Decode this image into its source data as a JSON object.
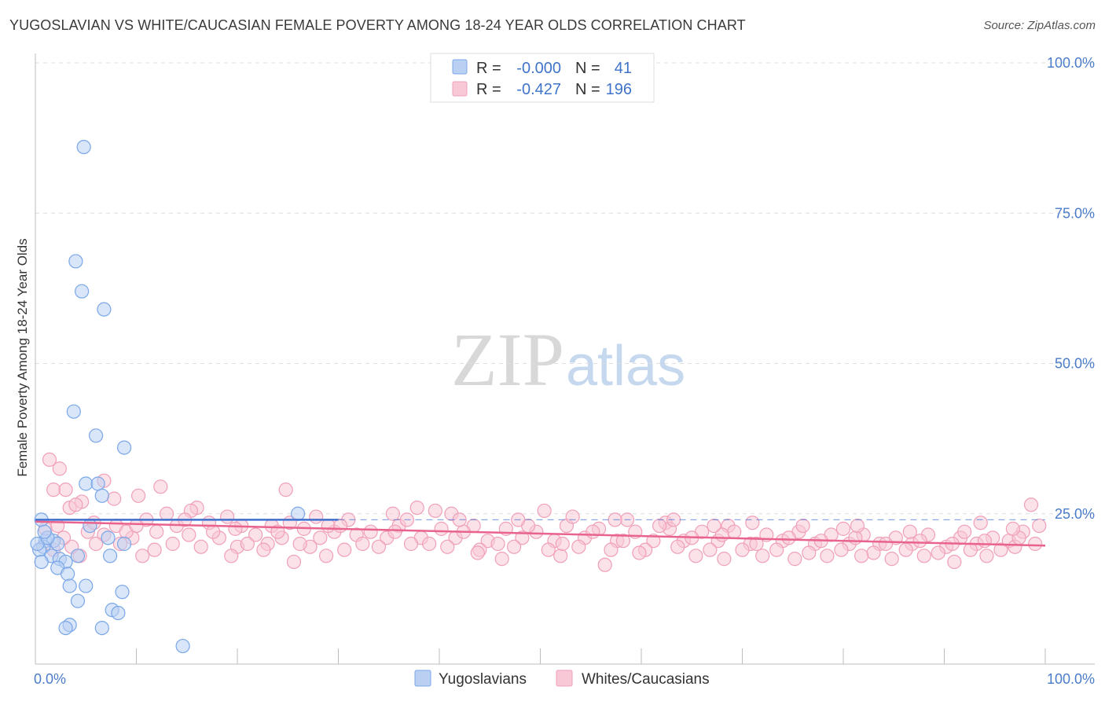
{
  "title": "YUGOSLAVIAN VS WHITE/CAUCASIAN FEMALE POVERTY AMONG 18-24 YEAR OLDS CORRELATION CHART",
  "source": "Source: ZipAtlas.com",
  "watermark": {
    "zip": "ZIP",
    "atlas": "atlas"
  },
  "chart_data": {
    "type": "scatter",
    "title": "YUGOSLAVIAN VS WHITE/CAUCASIAN FEMALE POVERTY AMONG 18-24 YEAR OLDS CORRELATION CHART",
    "xlabel": "",
    "ylabel": "Female Poverty Among 18-24 Year Olds",
    "xlim": [
      0,
      100
    ],
    "ylim": [
      0,
      100
    ],
    "x_tick_labels": [
      "0.0%",
      "100.0%"
    ],
    "y_ticks": [
      25,
      50,
      75,
      100
    ],
    "y_tick_labels": [
      "25.0%",
      "50.0%",
      "75.0%",
      "100.0%"
    ],
    "grid": true,
    "legend": {
      "placement": "top-center",
      "rows": [
        {
          "r_label": "R =",
          "r_value": "-0.000",
          "n_label": "N =",
          "n_value": "41"
        },
        {
          "r_label": "R =",
          "r_value": "-0.427",
          "n_label": "N =",
          "n_value": "196"
        }
      ]
    },
    "series": [
      {
        "name": "Yugoslavians",
        "color": "#7aa7e8",
        "fill": "#b9d0f3",
        "trend": {
          "x": [
            0,
            30
          ],
          "y": [
            24.0,
            24.0
          ],
          "color": "#3f6fcf"
        },
        "points": [
          [
            4.8,
            86
          ],
          [
            4.0,
            67
          ],
          [
            4.6,
            62
          ],
          [
            6.8,
            59
          ],
          [
            3.8,
            42
          ],
          [
            6.0,
            38
          ],
          [
            8.8,
            36
          ],
          [
            5.0,
            30
          ],
          [
            6.2,
            30
          ],
          [
            6.6,
            28
          ],
          [
            0.6,
            24
          ],
          [
            5.4,
            23
          ],
          [
            7.2,
            21
          ],
          [
            1.0,
            20.5
          ],
          [
            1.8,
            20.5
          ],
          [
            2.2,
            20
          ],
          [
            8.8,
            20
          ],
          [
            0.8,
            19.5
          ],
          [
            0.4,
            19
          ],
          [
            1.6,
            18
          ],
          [
            2.4,
            17.5
          ],
          [
            4.2,
            18
          ],
          [
            7.4,
            18
          ],
          [
            0.6,
            17
          ],
          [
            3.0,
            17
          ],
          [
            2.2,
            16
          ],
          [
            3.2,
            15
          ],
          [
            3.4,
            13
          ],
          [
            5.0,
            13
          ],
          [
            8.6,
            12
          ],
          [
            4.2,
            10.5
          ],
          [
            7.6,
            9
          ],
          [
            8.2,
            8.5
          ],
          [
            3.4,
            6.5
          ],
          [
            3.0,
            6
          ],
          [
            6.6,
            6
          ],
          [
            14.6,
            3
          ],
          [
            26.0,
            25
          ],
          [
            0.2,
            20
          ],
          [
            1.2,
            21
          ],
          [
            0.9,
            22
          ]
        ]
      },
      {
        "name": "Whites/Caucasians",
        "color": "#f0a0b8",
        "fill": "#f8c8d6",
        "trend": {
          "x": [
            0,
            100
          ],
          "y": [
            23.7,
            19.7
          ],
          "color": "#e8648e"
        },
        "points": [
          [
            1.4,
            34
          ],
          [
            2.4,
            32.5
          ],
          [
            6.8,
            30.5
          ],
          [
            12.4,
            29.5
          ],
          [
            1.8,
            29
          ],
          [
            24.8,
            29
          ],
          [
            3.0,
            29
          ],
          [
            10.2,
            28
          ],
          [
            7.8,
            27.5
          ],
          [
            3.4,
            26
          ],
          [
            4.6,
            27
          ],
          [
            4.0,
            26.5
          ],
          [
            16.0,
            26
          ],
          [
            13.0,
            25
          ],
          [
            15.4,
            25.5
          ],
          [
            19.0,
            24.5
          ],
          [
            27.8,
            24.5
          ],
          [
            31.0,
            24
          ],
          [
            35.4,
            25
          ],
          [
            37.8,
            26
          ],
          [
            39.6,
            25.5
          ],
          [
            41.2,
            25
          ],
          [
            50.4,
            25.5
          ],
          [
            58.6,
            24
          ],
          [
            62.4,
            23.5
          ],
          [
            68.6,
            23
          ],
          [
            80.0,
            22.5
          ],
          [
            93.6,
            23.5
          ],
          [
            98.6,
            26.5
          ],
          [
            8.0,
            23
          ],
          [
            11.0,
            24
          ],
          [
            14.0,
            23
          ],
          [
            17.2,
            23.5
          ],
          [
            20.4,
            23
          ],
          [
            23.4,
            23
          ],
          [
            26.6,
            22.5
          ],
          [
            29.6,
            22
          ],
          [
            33.2,
            22
          ],
          [
            36.0,
            23
          ],
          [
            40.2,
            22.5
          ],
          [
            43.4,
            23
          ],
          [
            46.6,
            22.5
          ],
          [
            49.6,
            22
          ],
          [
            52.6,
            23
          ],
          [
            55.8,
            22.5
          ],
          [
            59.4,
            22
          ],
          [
            62.8,
            22.5
          ],
          [
            66.0,
            22
          ],
          [
            69.2,
            22
          ],
          [
            72.4,
            21.5
          ],
          [
            75.6,
            22
          ],
          [
            78.8,
            21.5
          ],
          [
            82.0,
            21.5
          ],
          [
            85.2,
            21
          ],
          [
            88.4,
            21.5
          ],
          [
            91.6,
            21
          ],
          [
            94.8,
            21
          ],
          [
            97.8,
            22
          ],
          [
            1.0,
            22.5
          ],
          [
            2.2,
            23
          ],
          [
            5.2,
            22
          ],
          [
            6.8,
            21.5
          ],
          [
            9.6,
            21
          ],
          [
            12.0,
            22
          ],
          [
            15.2,
            21.5
          ],
          [
            18.2,
            21
          ],
          [
            21.8,
            21.5
          ],
          [
            24.4,
            21
          ],
          [
            28.2,
            21
          ],
          [
            31.8,
            21.5
          ],
          [
            34.8,
            21
          ],
          [
            38.2,
            21
          ],
          [
            41.6,
            21
          ],
          [
            44.8,
            20.5
          ],
          [
            48.2,
            21
          ],
          [
            51.4,
            20.5
          ],
          [
            54.4,
            21
          ],
          [
            57.6,
            20.5
          ],
          [
            61.2,
            20.5
          ],
          [
            64.2,
            20.5
          ],
          [
            67.6,
            20.5
          ],
          [
            70.8,
            20
          ],
          [
            74.0,
            20.5
          ],
          [
            77.2,
            20
          ],
          [
            80.6,
            20
          ],
          [
            83.6,
            20
          ],
          [
            86.8,
            20
          ],
          [
            90.2,
            19.5
          ],
          [
            93.2,
            20
          ],
          [
            96.4,
            20.5
          ],
          [
            3.6,
            19.5
          ],
          [
            8.4,
            20
          ],
          [
            11.8,
            19
          ],
          [
            16.4,
            19.5
          ],
          [
            20.0,
            19.5
          ],
          [
            23.0,
            20
          ],
          [
            27.2,
            19.5
          ],
          [
            30.6,
            19
          ],
          [
            34.0,
            19.5
          ],
          [
            37.2,
            20
          ],
          [
            40.8,
            19.5
          ],
          [
            44.0,
            19
          ],
          [
            47.4,
            19.5
          ],
          [
            50.8,
            19
          ],
          [
            53.8,
            19.5
          ],
          [
            57.0,
            19
          ],
          [
            60.4,
            19
          ],
          [
            63.6,
            19.5
          ],
          [
            66.8,
            19
          ],
          [
            70.0,
            19
          ],
          [
            73.4,
            19
          ],
          [
            76.6,
            18.5
          ],
          [
            79.8,
            19
          ],
          [
            83.0,
            18.5
          ],
          [
            86.2,
            19
          ],
          [
            89.4,
            18.5
          ],
          [
            92.6,
            19
          ],
          [
            95.6,
            19
          ],
          [
            4.4,
            18
          ],
          [
            10.6,
            18
          ],
          [
            19.4,
            18
          ],
          [
            25.6,
            17
          ],
          [
            28.8,
            18
          ],
          [
            43.8,
            18.5
          ],
          [
            52.0,
            18
          ],
          [
            59.8,
            18.5
          ],
          [
            65.4,
            18
          ],
          [
            68.2,
            17.5
          ],
          [
            72.0,
            18
          ],
          [
            75.2,
            17.5
          ],
          [
            78.4,
            18
          ],
          [
            81.8,
            18
          ],
          [
            84.8,
            17.5
          ],
          [
            88.0,
            18
          ],
          [
            91.0,
            17
          ],
          [
            94.2,
            18
          ],
          [
            97.0,
            19.5
          ],
          [
            99.0,
            20
          ],
          [
            2.8,
            21
          ],
          [
            6.0,
            20
          ],
          [
            9.0,
            22
          ],
          [
            13.6,
            20
          ],
          [
            17.6,
            22
          ],
          [
            21.0,
            20
          ],
          [
            24.0,
            22
          ],
          [
            26.2,
            20
          ],
          [
            29.0,
            23
          ],
          [
            32.4,
            20
          ],
          [
            35.6,
            22
          ],
          [
            39.0,
            20
          ],
          [
            42.4,
            22
          ],
          [
            45.8,
            20
          ],
          [
            48.8,
            23
          ],
          [
            52.2,
            20
          ],
          [
            55.2,
            22
          ],
          [
            58.2,
            20.5
          ],
          [
            61.8,
            23
          ],
          [
            65.0,
            21
          ],
          [
            68.0,
            21.5
          ],
          [
            71.4,
            20
          ],
          [
            74.6,
            21
          ],
          [
            77.8,
            20.5
          ],
          [
            81.2,
            21
          ],
          [
            84.2,
            20
          ],
          [
            87.6,
            20.5
          ],
          [
            90.8,
            20
          ],
          [
            94.0,
            20.5
          ],
          [
            97.4,
            21
          ],
          [
            1.8,
            19
          ],
          [
            5.8,
            23.5
          ],
          [
            10.0,
            23
          ],
          [
            14.8,
            24
          ],
          [
            19.8,
            22.5
          ],
          [
            25.2,
            23.5
          ],
          [
            30.2,
            23
          ],
          [
            36.8,
            24
          ],
          [
            42.0,
            24
          ],
          [
            47.8,
            24
          ],
          [
            53.2,
            24.5
          ],
          [
            57.4,
            24
          ],
          [
            63.2,
            24
          ],
          [
            67.2,
            23
          ],
          [
            71.0,
            23.5
          ],
          [
            76.0,
            23
          ],
          [
            81.4,
            23
          ],
          [
            86.6,
            22
          ],
          [
            92.0,
            22
          ],
          [
            96.8,
            22.5
          ],
          [
            99.4,
            23
          ],
          [
            22.6,
            19
          ],
          [
            46.2,
            17.5
          ],
          [
            56.4,
            16.5
          ]
        ]
      }
    ]
  },
  "bottom_legend": [
    "Yugoslavians",
    "Whites/Caucasians"
  ]
}
